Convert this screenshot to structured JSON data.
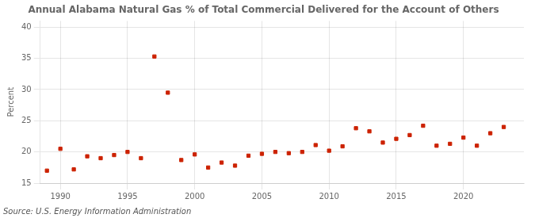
{
  "chart_data": {
    "type": "scatter",
    "title": "Annual Alabama Natural Gas % of Total Commercial Delivered for the Account of Others",
    "ylabel": "Percent",
    "annotation": "Source: U.S. Energy Information Administration",
    "x": [
      1989,
      1990,
      1991,
      1992,
      1993,
      1994,
      1995,
      1996,
      1997,
      1998,
      1999,
      2000,
      2001,
      2002,
      2003,
      2004,
      2005,
      2006,
      2007,
      2008,
      2009,
      2010,
      2011,
      2012,
      2013,
      2014,
      2015,
      2016,
      2017,
      2018,
      2019,
      2020,
      2021,
      2022,
      2023
    ],
    "values": [
      17.0,
      20.5,
      17.2,
      19.3,
      19.0,
      19.5,
      20.0,
      19.0,
      35.3,
      29.5,
      18.7,
      19.6,
      17.5,
      18.3,
      17.8,
      19.4,
      19.7,
      20.0,
      19.8,
      20.0,
      21.1,
      20.2,
      20.9,
      23.8,
      23.3,
      21.5,
      22.1,
      22.7,
      24.2,
      21.0,
      21.3,
      22.3,
      21.0,
      23.0,
      24.0
    ],
    "color": "#cc2200",
    "marker": "square",
    "xlim": [
      1988.5,
      2024.5
    ],
    "ylim": [
      15,
      41
    ],
    "xticks": [
      1990,
      1995,
      2000,
      2005,
      2010,
      2015,
      2020
    ],
    "yticks": [
      15,
      20,
      25,
      30,
      35,
      40
    ],
    "grid": true
  }
}
